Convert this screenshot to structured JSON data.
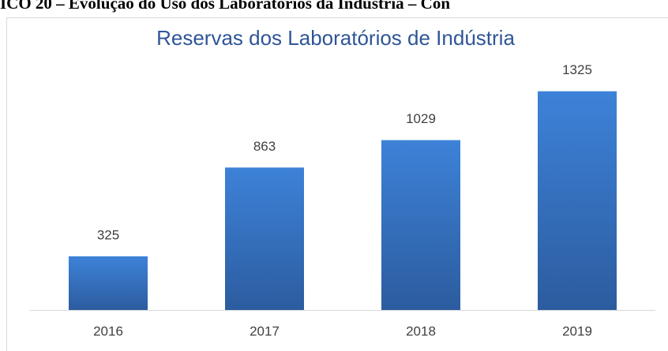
{
  "caption": "ICO 20 – Evolução do Uso dos Laboratórios da Indústria – Con",
  "chart_data": {
    "type": "bar",
    "title": "Reservas dos Laboratórios de Indústria",
    "categories": [
      "2016",
      "2017",
      "2018",
      "2019"
    ],
    "values": [
      325,
      863,
      1029,
      1325
    ],
    "color": "#3a7bd0",
    "ylim": [
      0,
      1400
    ],
    "grid": false,
    "data_labels": true
  }
}
